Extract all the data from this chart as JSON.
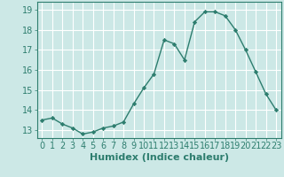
{
  "x": [
    0,
    1,
    2,
    3,
    4,
    5,
    6,
    7,
    8,
    9,
    10,
    11,
    12,
    13,
    14,
    15,
    16,
    17,
    18,
    19,
    20,
    21,
    22,
    23
  ],
  "y": [
    13.5,
    13.6,
    13.3,
    13.1,
    12.8,
    12.9,
    13.1,
    13.2,
    13.4,
    14.3,
    15.1,
    15.8,
    17.5,
    17.3,
    16.5,
    18.4,
    18.9,
    18.9,
    18.7,
    18.0,
    17.0,
    15.9,
    14.8,
    14.0
  ],
  "line_color": "#2d7d6e",
  "marker_color": "#2d7d6e",
  "bg_color": "#cce8e6",
  "grid_color": "#ffffff",
  "xlabel": "Humidex (Indice chaleur)",
  "ylabel_ticks": [
    13,
    14,
    15,
    16,
    17,
    18,
    19
  ],
  "ylim": [
    12.6,
    19.4
  ],
  "xlim": [
    -0.5,
    23.5
  ],
  "tick_color": "#2d7d6e",
  "label_color": "#2d7d6e",
  "tick_fontsize": 7,
  "xlabel_fontsize": 8
}
